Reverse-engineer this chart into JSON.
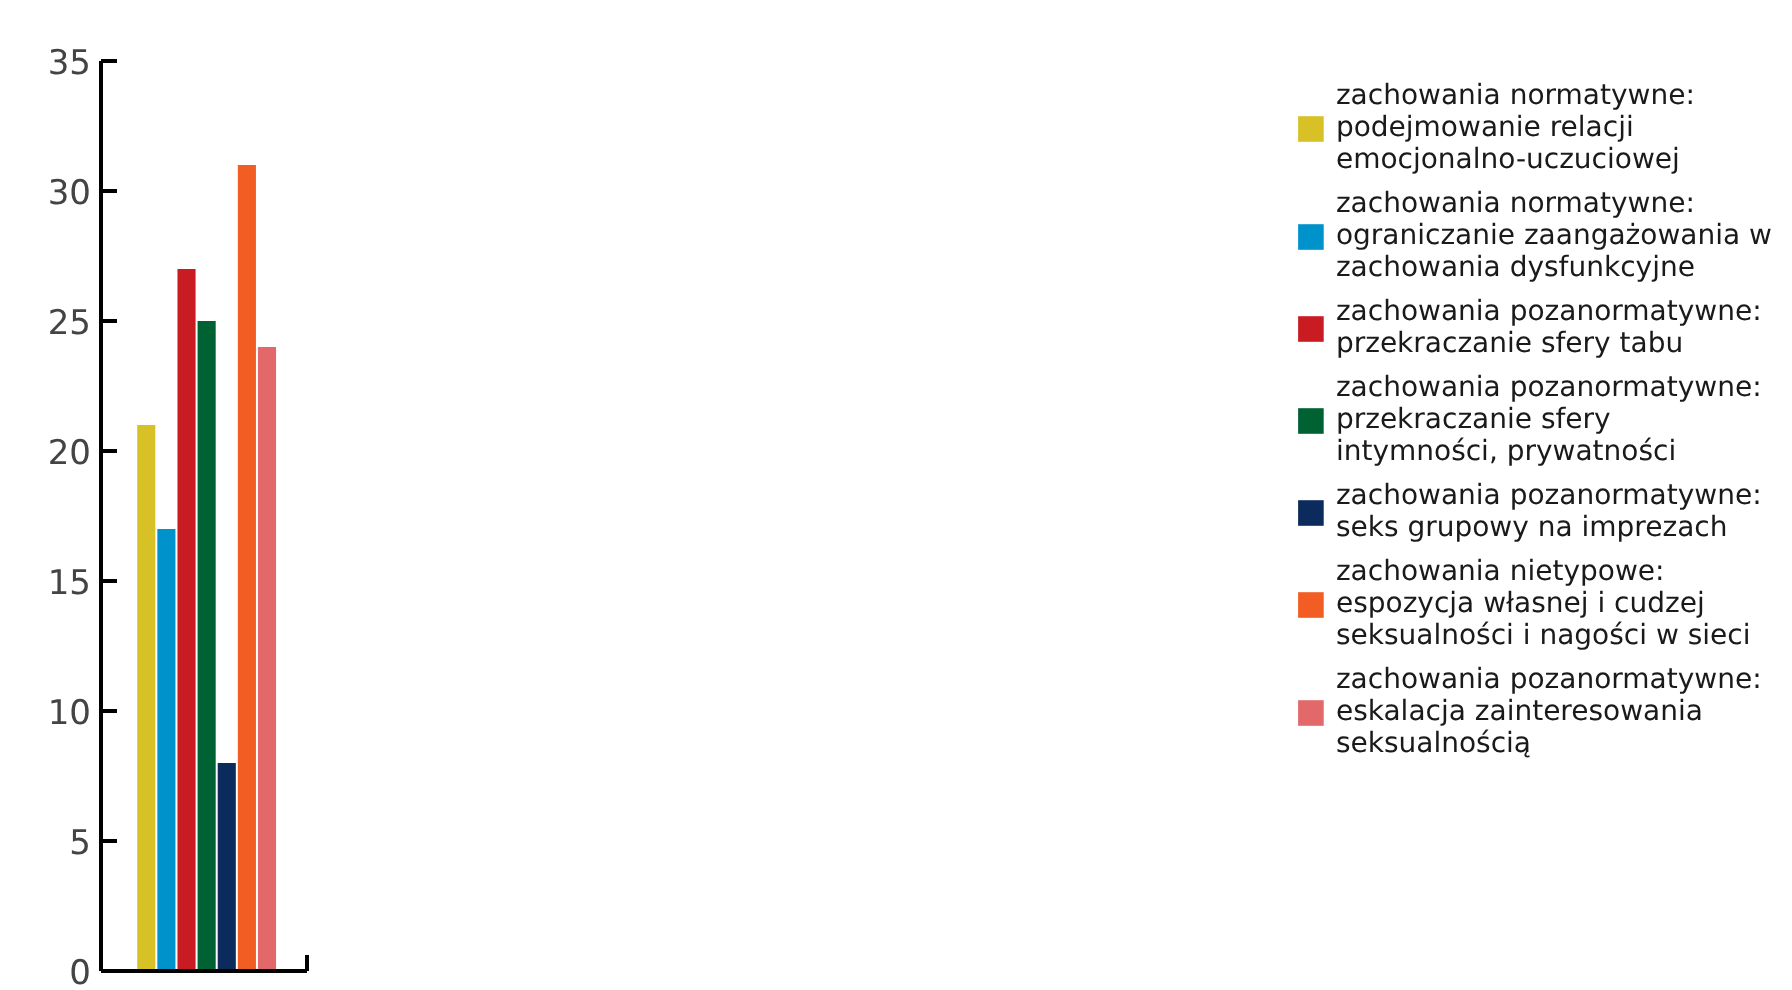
{
  "chart_data": {
    "type": "bar",
    "categories": [
      null
    ],
    "series": [
      {
        "name": "zachowania normatywne: podejmowanie relacji emocjonalno-uczuciowej",
        "color": "#d8c126",
        "values": [
          21
        ]
      },
      {
        "name": "zachowania normatywne: ograniczanie zaangażowania w zachowania dysfunkcyjne",
        "color": "#0093cb",
        "values": [
          17
        ]
      },
      {
        "name": "zachowania pozanormatywne: przekraczanie sfery tabu",
        "color": "#c91b22",
        "values": [
          27
        ]
      },
      {
        "name": "zachowania pozanormatywne: przekraczanie sfery intymności, prywatności",
        "color": "#006233",
        "values": [
          25
        ]
      },
      {
        "name": "zachowania pozanormatywne: seks grupowy na imprezach",
        "color": "#0a2b5c",
        "values": [
          8
        ]
      },
      {
        "name": "zachowania nietypowe: espozycja własnej i cudzej seksualności i nagości w sieci",
        "color": "#f15d22",
        "values": [
          31
        ]
      },
      {
        "name": "zachowania pozanormatywne: eskalacja zainteresowania seksualnością",
        "color": "#e2686a",
        "values": [
          24
        ]
      }
    ],
    "ylim": [
      0,
      35
    ],
    "yticks": [
      0,
      5,
      10,
      15,
      20,
      25,
      30,
      35
    ],
    "grid": false,
    "legend": "right"
  }
}
